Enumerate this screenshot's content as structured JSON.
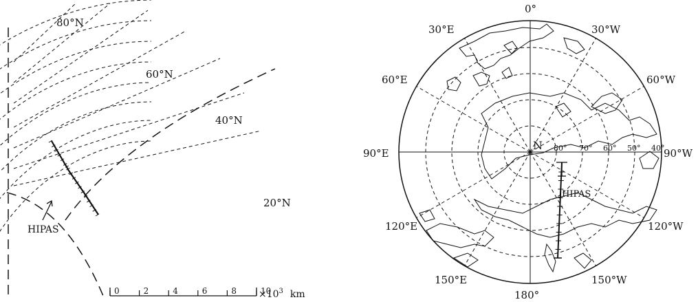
{
  "left_panel": {
    "lat_labels": [
      {
        "key": "80N",
        "text": "80°N"
      },
      {
        "key": "60N",
        "text": "60°N"
      },
      {
        "key": "40N",
        "text": "40°N"
      },
      {
        "key": "20N",
        "text": "20°N"
      }
    ],
    "station_label": "HIPAS",
    "scale_ticks": [
      "0",
      "2",
      "4",
      "6",
      "8",
      "10"
    ],
    "scale_unit_prefix": "×10",
    "scale_unit_exp": "3",
    "scale_unit_suffix": "km"
  },
  "right_panel": {
    "lon_labels": [
      {
        "key": "0",
        "text": "0°"
      },
      {
        "key": "30W",
        "text": "30°W"
      },
      {
        "key": "60W",
        "text": "60°W"
      },
      {
        "key": "90W",
        "text": "90°W"
      },
      {
        "key": "120W",
        "text": "120°W"
      },
      {
        "key": "150W",
        "text": "150°W"
      },
      {
        "key": "180",
        "text": "180°"
      },
      {
        "key": "150E",
        "text": "150°E"
      },
      {
        "key": "120E",
        "text": "120°E"
      },
      {
        "key": "90E",
        "text": "90°E"
      },
      {
        "key": "60E",
        "text": "60°E"
      },
      {
        "key": "30E",
        "text": "30°E"
      }
    ],
    "pole_label": "N",
    "lat_ticks": [
      "80",
      "70",
      "60",
      "50",
      "40"
    ],
    "station_label": "HIPAS"
  }
}
